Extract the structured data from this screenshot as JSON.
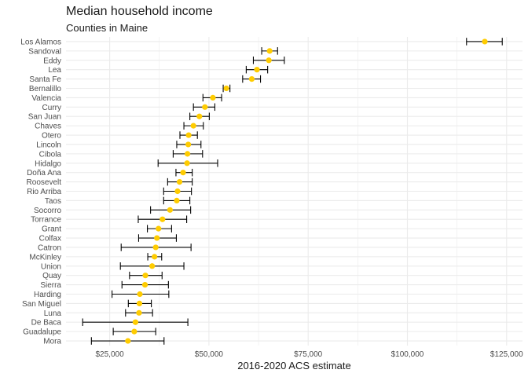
{
  "chart_data": {
    "type": "errorbar-dot",
    "title": "Median household income",
    "subtitle": "Counties in Maine",
    "xlabel": "2016-2020 ACS estimate",
    "ylabel": "",
    "xlim": [
      14000,
      129000
    ],
    "xticks": [
      {
        "value": 25000,
        "label": "$25,000"
      },
      {
        "value": 50000,
        "label": "$50,000"
      },
      {
        "value": 75000,
        "label": "$75,000"
      },
      {
        "value": 100000,
        "label": "$100,000"
      },
      {
        "value": 125000,
        "label": "$125,000"
      }
    ],
    "grid": true,
    "point_color": "#FFCC00",
    "bar_color": "#000000",
    "grid_color": "#EBEBEB",
    "rows": [
      {
        "name": "Los Alamos",
        "estimate": 119500,
        "low": 114900,
        "high": 123900
      },
      {
        "name": "Sandoval",
        "estimate": 65300,
        "low": 63300,
        "high": 67300
      },
      {
        "name": "Eddy",
        "estimate": 65100,
        "low": 61200,
        "high": 69000
      },
      {
        "name": "Lea",
        "estimate": 62100,
        "low": 59400,
        "high": 64800
      },
      {
        "name": "Santa Fe",
        "estimate": 60800,
        "low": 58500,
        "high": 63000
      },
      {
        "name": "Bernalillo",
        "estimate": 54400,
        "low": 53600,
        "high": 55300
      },
      {
        "name": "Valencia",
        "estimate": 51000,
        "low": 48500,
        "high": 53200
      },
      {
        "name": "Curry",
        "estimate": 49000,
        "low": 46100,
        "high": 51500
      },
      {
        "name": "San Juan",
        "estimate": 47600,
        "low": 45200,
        "high": 50100
      },
      {
        "name": "Chaves",
        "estimate": 46100,
        "low": 43700,
        "high": 48600
      },
      {
        "name": "Otero",
        "estimate": 44900,
        "low": 42700,
        "high": 47100
      },
      {
        "name": "Lincoln",
        "estimate": 44800,
        "low": 41900,
        "high": 48000
      },
      {
        "name": "Cibola",
        "estimate": 44600,
        "low": 41000,
        "high": 48400
      },
      {
        "name": "Hidalgo",
        "estimate": 44500,
        "low": 37200,
        "high": 52200
      },
      {
        "name": "Doña Ana",
        "estimate": 43500,
        "low": 41700,
        "high": 45800
      },
      {
        "name": "Roosevelt",
        "estimate": 42600,
        "low": 39600,
        "high": 45800
      },
      {
        "name": "Rio Arriba",
        "estimate": 42100,
        "low": 38600,
        "high": 45600
      },
      {
        "name": "Taos",
        "estimate": 41900,
        "low": 38600,
        "high": 45200
      },
      {
        "name": "Socorro",
        "estimate": 40200,
        "low": 35300,
        "high": 45400
      },
      {
        "name": "Torrance",
        "estimate": 38300,
        "low": 32200,
        "high": 44400
      },
      {
        "name": "Grant",
        "estimate": 37300,
        "low": 34500,
        "high": 40600
      },
      {
        "name": "Colfax",
        "estimate": 36900,
        "low": 32300,
        "high": 41800
      },
      {
        "name": "Catron",
        "estimate": 36600,
        "low": 27900,
        "high": 45500
      },
      {
        "name": "McKinley",
        "estimate": 36300,
        "low": 34600,
        "high": 38100
      },
      {
        "name": "Union",
        "estimate": 35700,
        "low": 27700,
        "high": 43700
      },
      {
        "name": "Quay",
        "estimate": 34000,
        "low": 30000,
        "high": 38200
      },
      {
        "name": "Sierra",
        "estimate": 33900,
        "low": 28100,
        "high": 39800
      },
      {
        "name": "Harding",
        "estimate": 32600,
        "low": 25600,
        "high": 39900
      },
      {
        "name": "San Miguel",
        "estimate": 32500,
        "low": 29700,
        "high": 35500
      },
      {
        "name": "Luna",
        "estimate": 32400,
        "low": 29000,
        "high": 35800
      },
      {
        "name": "De Baca",
        "estimate": 31500,
        "low": 18200,
        "high": 44700
      },
      {
        "name": "Guadalupe",
        "estimate": 31200,
        "low": 25900,
        "high": 36600
      },
      {
        "name": "Mora",
        "estimate": 29600,
        "low": 20400,
        "high": 38700
      }
    ]
  }
}
